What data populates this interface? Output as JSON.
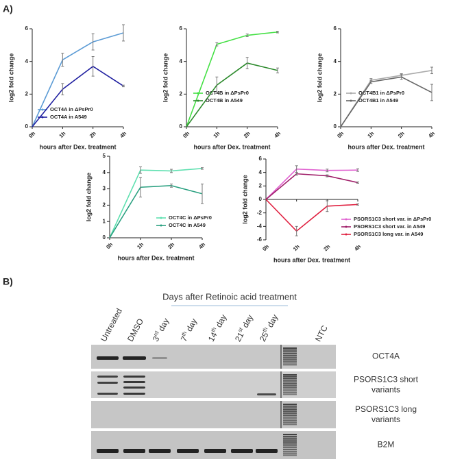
{
  "panel_labels": [
    "A)",
    "B)"
  ],
  "chart_data": [
    {
      "type": "line",
      "x_label": "hours after Dex. treatment",
      "y_label": "log2 fold change",
      "categories": [
        "0h",
        "1h",
        "2h",
        "4h"
      ],
      "ylim": [
        0,
        6
      ],
      "yticks": [
        0,
        2,
        4,
        6
      ],
      "series": [
        {
          "name": "OCT4A in ΔPsPr0",
          "color": "#5b9bd5",
          "values": [
            0,
            4.1,
            5.2,
            5.75
          ],
          "errors": [
            null,
            0.4,
            0.5,
            0.5
          ]
        },
        {
          "name": "OCT4A in A549",
          "color": "#1f1fa0",
          "values": [
            0,
            2.3,
            3.7,
            2.5
          ],
          "errors": [
            null,
            0.35,
            0.6,
            0.05
          ]
        }
      ]
    },
    {
      "type": "line",
      "x_label": "hours after Dex. treatment",
      "y_label": "log2 fold change",
      "categories": [
        "0h",
        "1h",
        "2h",
        "4h"
      ],
      "ylim": [
        0,
        6
      ],
      "yticks": [
        0,
        2,
        4,
        6
      ],
      "series": [
        {
          "name": "OCT4B in ΔPsPr0",
          "color": "#44e044",
          "values": [
            0,
            5.05,
            5.6,
            5.8
          ],
          "errors": [
            null,
            0.1,
            0.08,
            0.05
          ]
        },
        {
          "name": "OCT4B in A549",
          "color": "#2e8b2e",
          "values": [
            0,
            2.55,
            3.9,
            3.45
          ],
          "errors": [
            null,
            0.5,
            0.35,
            0.15
          ]
        }
      ]
    },
    {
      "type": "line",
      "x_label": "hours after Dex. treatment",
      "y_label": "log2 fold change",
      "categories": [
        "0h",
        "1h",
        "2h",
        "4h"
      ],
      "ylim": [
        0,
        6
      ],
      "yticks": [
        0,
        2,
        4,
        6
      ],
      "series": [
        {
          "name": "OCT4B1 in ΔPsPr0",
          "color": "#aaaaaa",
          "values": [
            0,
            2.85,
            3.15,
            3.45
          ],
          "errors": [
            null,
            0.1,
            0.1,
            0.2
          ]
        },
        {
          "name": "OCT4B1 in A549",
          "color": "#666666",
          "values": [
            0,
            2.75,
            3.05,
            2.1
          ],
          "errors": [
            null,
            0.1,
            0.15,
            0.5
          ]
        }
      ]
    },
    {
      "type": "line",
      "x_label": "hours after Dex. treatment",
      "y_label": "log2 fold change",
      "categories": [
        "0h",
        "1h",
        "2h",
        "4h"
      ],
      "ylim": [
        0,
        5
      ],
      "yticks": [
        0,
        1,
        2,
        3,
        4,
        5
      ],
      "series": [
        {
          "name": "OCT4C in ΔPsPr0",
          "color": "#5fe0b0",
          "values": [
            0,
            4.15,
            4.1,
            4.25
          ],
          "errors": [
            null,
            0.2,
            0.1,
            0.05
          ]
        },
        {
          "name": "OCT4C in A549",
          "color": "#2aa080",
          "values": [
            0,
            3.1,
            3.2,
            2.7
          ],
          "errors": [
            null,
            0.6,
            0.1,
            0.6
          ]
        }
      ]
    },
    {
      "type": "line",
      "x_label": "hours after Dex. treatment",
      "y_label": "log2 fold change",
      "categories": [
        "0h",
        "1h",
        "2h",
        "4h"
      ],
      "ylim": [
        -6,
        6
      ],
      "yticks": [
        -6,
        -4,
        -2,
        0,
        2,
        4,
        6
      ],
      "series": [
        {
          "name": "PSORS1C3 short var. in ΔPsPr0",
          "color": "#e060d0",
          "values": [
            0,
            4.5,
            4.3,
            4.35
          ],
          "errors": [
            null,
            0.5,
            0.2,
            0.2
          ]
        },
        {
          "name": "PSORS1C3 short var. in A549",
          "color": "#a0206a",
          "values": [
            0,
            3.8,
            3.5,
            2.5
          ],
          "errors": [
            null,
            0.2,
            0.15,
            0.1
          ]
        },
        {
          "name": "PSORS1C3 long var. in A549",
          "color": "#e02040",
          "values": [
            0,
            -4.7,
            -1,
            -0.75
          ],
          "errors": [
            null,
            0.7,
            0.8,
            0.1
          ]
        }
      ]
    }
  ],
  "gel": {
    "title": "Days after Retinoic acid treatment",
    "lanes": [
      {
        "base": "Untreated"
      },
      {
        "base": "DMSO"
      },
      {
        "base": "3",
        "sup": "rd",
        "tail": " day"
      },
      {
        "base": "7",
        "sup": "th",
        "tail": " day"
      },
      {
        "base": "14",
        "sup": "th",
        "tail": " day"
      },
      {
        "base": "21",
        "sup": "st",
        "tail": " day"
      },
      {
        "base": "25",
        "sup": "th",
        "tail": " day"
      },
      {
        "base": "NTC"
      }
    ],
    "rows": [
      [
        "OCT4A"
      ],
      [
        "PSORS1C3 short",
        "variants"
      ],
      [
        "PSORS1C3 long",
        "variants"
      ],
      [
        "B2M"
      ]
    ]
  }
}
